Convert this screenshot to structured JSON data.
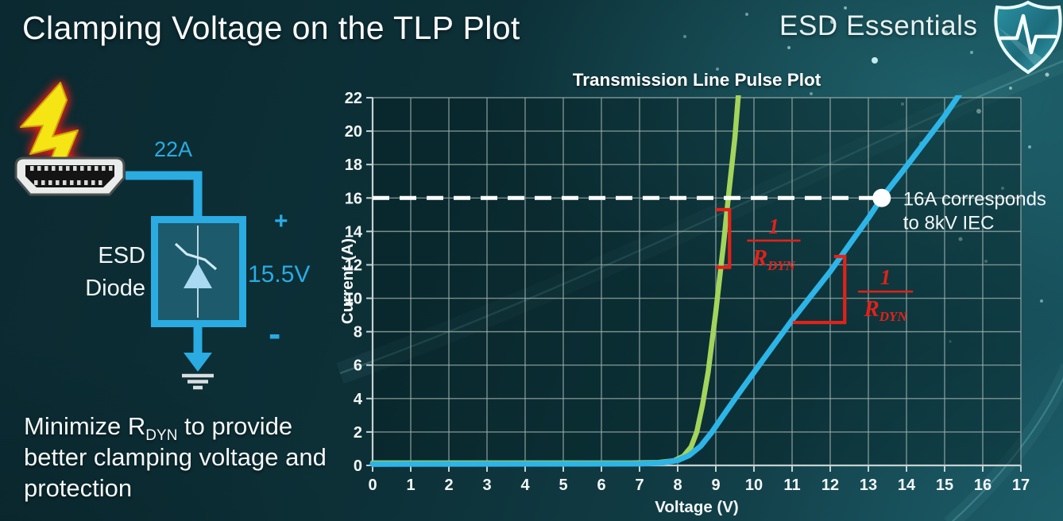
{
  "header": {
    "title": "Clamping Voltage on the TLP Plot",
    "brand": "ESD Essentials"
  },
  "note": {
    "pre": "Minimize R",
    "sub": "DYN",
    "post": " to provide better clamping voltage and protection"
  },
  "circuit": {
    "surge_current_label": "22A",
    "device_label_line1": "ESD",
    "device_label_line2": "Diode",
    "plus_label": "+",
    "clamp_voltage_label": "15.5V",
    "minus_label": "-"
  },
  "colors": {
    "accent_cyan": "#2aabe2",
    "curve_green": "#a3d45c",
    "curve_blue": "#2db5e8",
    "annotation_red": "#e32119",
    "grid_gray": "#9fb0af",
    "bolt_yellow": "#f5e514",
    "text_white": "#f4f7f7"
  },
  "chart_data": {
    "type": "line",
    "title": "Transmission Line Pulse Plot",
    "xlabel": "Voltage (V)",
    "ylabel": "Current (A)",
    "xlim": [
      0,
      17
    ],
    "ylim": [
      0,
      22
    ],
    "grid": true,
    "x_ticks": [
      0,
      1,
      2,
      3,
      4,
      5,
      6,
      7,
      8,
      9,
      10,
      11,
      12,
      13,
      14,
      15,
      16,
      17
    ],
    "y_ticks": [
      0,
      2,
      4,
      6,
      8,
      10,
      12,
      14,
      16,
      18,
      20,
      22
    ],
    "series": [
      {
        "id": "green",
        "color": "#a3d45c",
        "points": [
          [
            0,
            0.15
          ],
          [
            6.8,
            0.15
          ],
          [
            7.5,
            0.18
          ],
          [
            7.9,
            0.28
          ],
          [
            8.15,
            0.55
          ],
          [
            8.35,
            1.1
          ],
          [
            8.5,
            2.0
          ],
          [
            8.65,
            3.6
          ],
          [
            8.8,
            5.6
          ],
          [
            9.0,
            9.2
          ],
          [
            9.2,
            13.2
          ],
          [
            9.35,
            16.5
          ],
          [
            9.5,
            19.6
          ],
          [
            9.6,
            22.4
          ]
        ]
      },
      {
        "id": "blue",
        "color": "#2db5e8",
        "points": [
          [
            0,
            0.08
          ],
          [
            7.0,
            0.1
          ],
          [
            7.6,
            0.16
          ],
          [
            8.0,
            0.3
          ],
          [
            8.3,
            0.6
          ],
          [
            8.6,
            1.15
          ],
          [
            8.9,
            2.0
          ],
          [
            9.2,
            3.0
          ],
          [
            9.6,
            4.3
          ],
          [
            10.2,
            6.2
          ],
          [
            11.0,
            8.7
          ],
          [
            12.0,
            11.6
          ],
          [
            13.0,
            14.8
          ],
          [
            13.35,
            16.0
          ],
          [
            14.0,
            17.9
          ],
          [
            15.0,
            20.9
          ],
          [
            15.45,
            22.4
          ]
        ]
      }
    ],
    "reference_line": {
      "current": 16,
      "x_start": 0,
      "x_end": 13.35
    },
    "marker": {
      "x": 13.35,
      "y": 16
    },
    "callout": {
      "lines": [
        "16A corresponds",
        "to 8kV IEC"
      ]
    },
    "annotations": [
      {
        "kind": "bracket",
        "x1": 9.0,
        "x2": 9.36,
        "i1": 15.3,
        "i2": 11.85
      },
      {
        "kind": "fraction",
        "x": 10.52,
        "i": 13.45,
        "half_width": 0.7,
        "numerator": "1",
        "denominator": "R",
        "denominator_sub": "DYN"
      },
      {
        "kind": "angle",
        "x1": 11.02,
        "x2": 12.38,
        "i1": 8.55,
        "i2": 12.5,
        "cap": 0.28
      },
      {
        "kind": "fraction",
        "x": 13.45,
        "i": 10.4,
        "half_width": 0.72,
        "numerator": "1",
        "denominator": "R",
        "denominator_sub": "DYN"
      }
    ]
  }
}
